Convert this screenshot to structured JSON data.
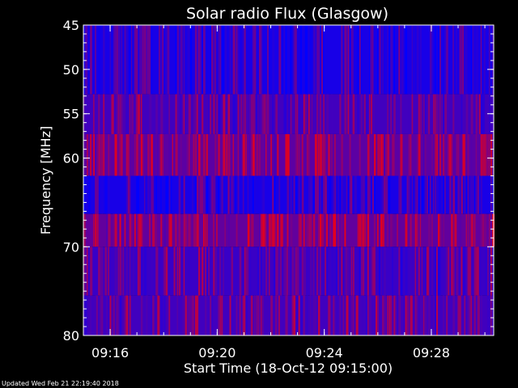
{
  "chart_data": {
    "type": "heatmap",
    "title": "Solar radio Flux (Glasgow)",
    "xlabel": "Start Time (18-Oct-12 09:15:00)",
    "ylabel": "Frequency [MHz]",
    "x_start": "09:15:00",
    "x_end": "09:30:20",
    "x_ticks": [
      "09:16",
      "09:20",
      "09:24",
      "09:28"
    ],
    "x_tick_minutes": [
      1,
      5,
      9,
      13
    ],
    "x_range_minutes": [
      0,
      15.33
    ],
    "ylim": [
      45,
      80
    ],
    "y_inverted": true,
    "y_ticks": [
      45,
      50,
      55,
      60,
      70,
      80
    ],
    "colormap": [
      "#0000ff",
      "#ff0000"
    ],
    "bands": [
      {
        "from": 45.0,
        "to": 52.8,
        "mean_intensity": 0.12
      },
      {
        "from": 52.8,
        "to": 57.3,
        "mean_intensity": 0.32
      },
      {
        "from": 57.3,
        "to": 62.0,
        "mean_intensity": 0.45
      },
      {
        "from": 62.0,
        "to": 66.3,
        "mean_intensity": 0.12
      },
      {
        "from": 66.3,
        "to": 70.0,
        "mean_intensity": 0.48
      },
      {
        "from": 70.0,
        "to": 75.5,
        "mean_intensity": 0.28
      },
      {
        "from": 75.5,
        "to": 80.0,
        "mean_intensity": 0.32
      }
    ]
  },
  "footer": {
    "updated_text": "Updated Wed Feb 21 22:19:40 2018"
  }
}
